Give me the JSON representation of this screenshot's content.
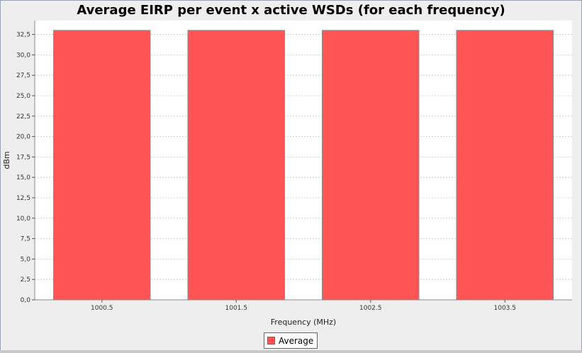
{
  "chart_data": {
    "type": "bar",
    "title": "Average EIRP per event x active WSDs (for each frequency)",
    "xlabel": "Frequency (MHz)",
    "ylabel": "dBm",
    "categories": [
      "1000.5",
      "1001.5",
      "1002.5",
      "1003.5"
    ],
    "series": [
      {
        "name": "Average",
        "values": [
          33.0,
          33.0,
          33.0,
          33.0
        ]
      }
    ],
    "ylim": [
      0,
      34.2
    ],
    "yticks": [
      0,
      2.5,
      5,
      7.5,
      10,
      12.5,
      15,
      17.5,
      20,
      22.5,
      25,
      27.5,
      30,
      32.5
    ],
    "ytick_labels": [
      "0,0",
      "2,5",
      "5,0",
      "7,5",
      "10,0",
      "12,5",
      "15,0",
      "17,5",
      "20,0",
      "22,5",
      "25,0",
      "27,5",
      "30,0",
      "32,5"
    ],
    "grid": true,
    "legend": "bottom-center",
    "colors": {
      "bar": "#ff5555",
      "bar_outline": "#888888",
      "plot_bg": "#ffffff",
      "grid": "#c8c8c8"
    }
  }
}
